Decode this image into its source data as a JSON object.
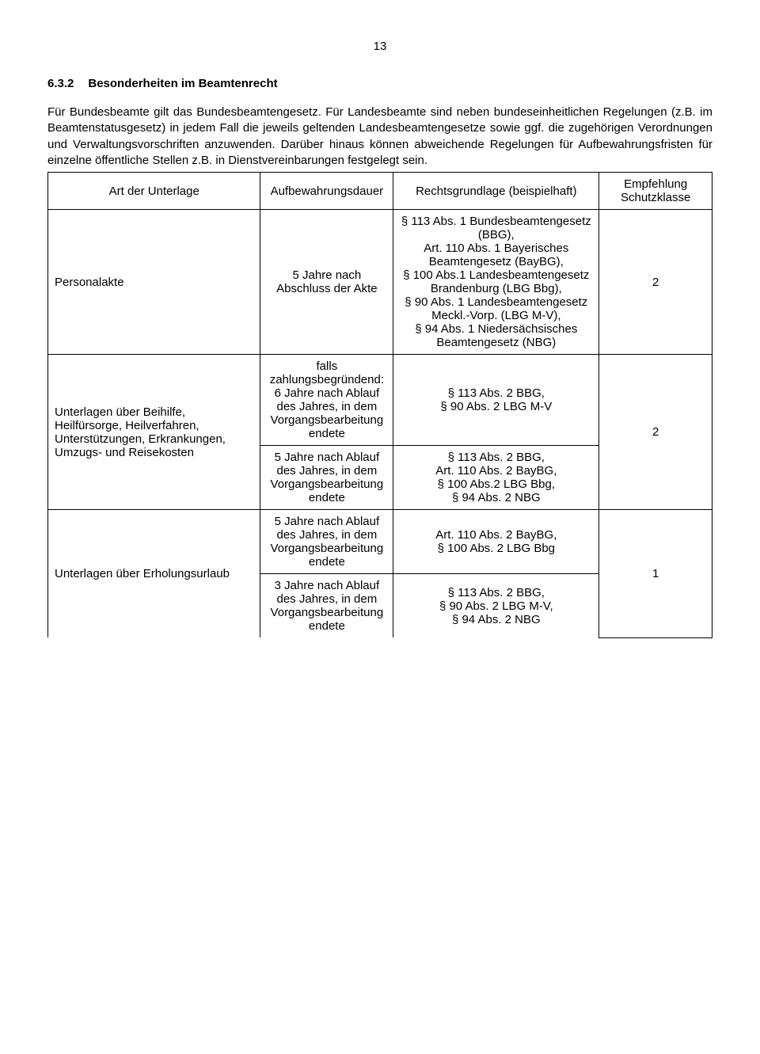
{
  "pageNumber": "13",
  "heading": {
    "num": "6.3.2",
    "title": "Besonderheiten im Beamtenrecht"
  },
  "para": "Für Bundesbeamte gilt das Bundesbeamtengesetz. Für Landesbeamte sind neben bundeseinheitlichen Regelungen (z.B. im Beamtenstatusgesetz) in jedem Fall die jeweils geltenden Landesbeamtengesetze sowie ggf. die zugehörigen Verordnungen und Verwaltungsvorschriften anzuwenden. Darüber hinaus können abweichende Regelungen für Aufbewahrungsfristen für einzelne öffentliche Stellen z.B. in Dienstvereinbarungen festgelegt sein.",
  "headers": {
    "c1": "Art der Unterlage",
    "c2": "Aufbewahrungsdauer",
    "c3": "Rechtsgrundlage (beispielhaft)",
    "c4": "Empfehlung Schutzklasse"
  },
  "r1": {
    "art": "Personalakte",
    "dauer": "5 Jahre nach Abschluss der Akte",
    "grund": "§ 113 Abs. 1 Bundesbeamtengesetz (BBG),\nArt. 110 Abs. 1 Bayerisches Beamtengesetz (BayBG),\n§ 100 Abs.1 Landesbeamtengesetz Brandenburg (LBG Bbg),\n§ 90 Abs. 1 Landesbeamtengesetz Meckl.-Vorp. (LBG M-V),\n§ 94 Abs. 1 Niedersächsisches Beamtengesetz (NBG)",
    "emp": "2"
  },
  "r2": {
    "art": "Unterlagen über Beihilfe, Heilfürsorge, Heilverfahren, Unterstützungen, Erkrankungen, Umzugs- und Reisekosten",
    "dauerA": "falls zahlungsbegründend: 6 Jahre nach Ablauf des Jahres, in dem Vorgangsbearbeitung endete",
    "grundA": "§ 113 Abs. 2 BBG,\n§ 90 Abs. 2 LBG M-V",
    "dauerB": "5 Jahre nach Ablauf des Jahres, in dem Vorgangsbearbeitung endete",
    "grundB": "§ 113 Abs. 2 BBG,\nArt. 110 Abs. 2 BayBG,\n§ 100 Abs.2 LBG Bbg,\n§ 94 Abs. 2 NBG",
    "emp": "2"
  },
  "r3": {
    "art": "Unterlagen über Erholungsurlaub",
    "dauerA": "5 Jahre nach Ablauf des Jahres, in dem Vorgangsbearbeitung endete",
    "grundA": "Art. 110 Abs. 2 BayBG,\n§ 100 Abs. 2 LBG Bbg",
    "dauerB": "3 Jahre nach Ablauf des Jahres, in dem Vorgangsbearbeitung endete",
    "grundB": "§ 113 Abs. 2 BBG,\n§ 90 Abs. 2 LBG M-V,\n§ 94 Abs. 2 NBG",
    "emp": "1"
  }
}
